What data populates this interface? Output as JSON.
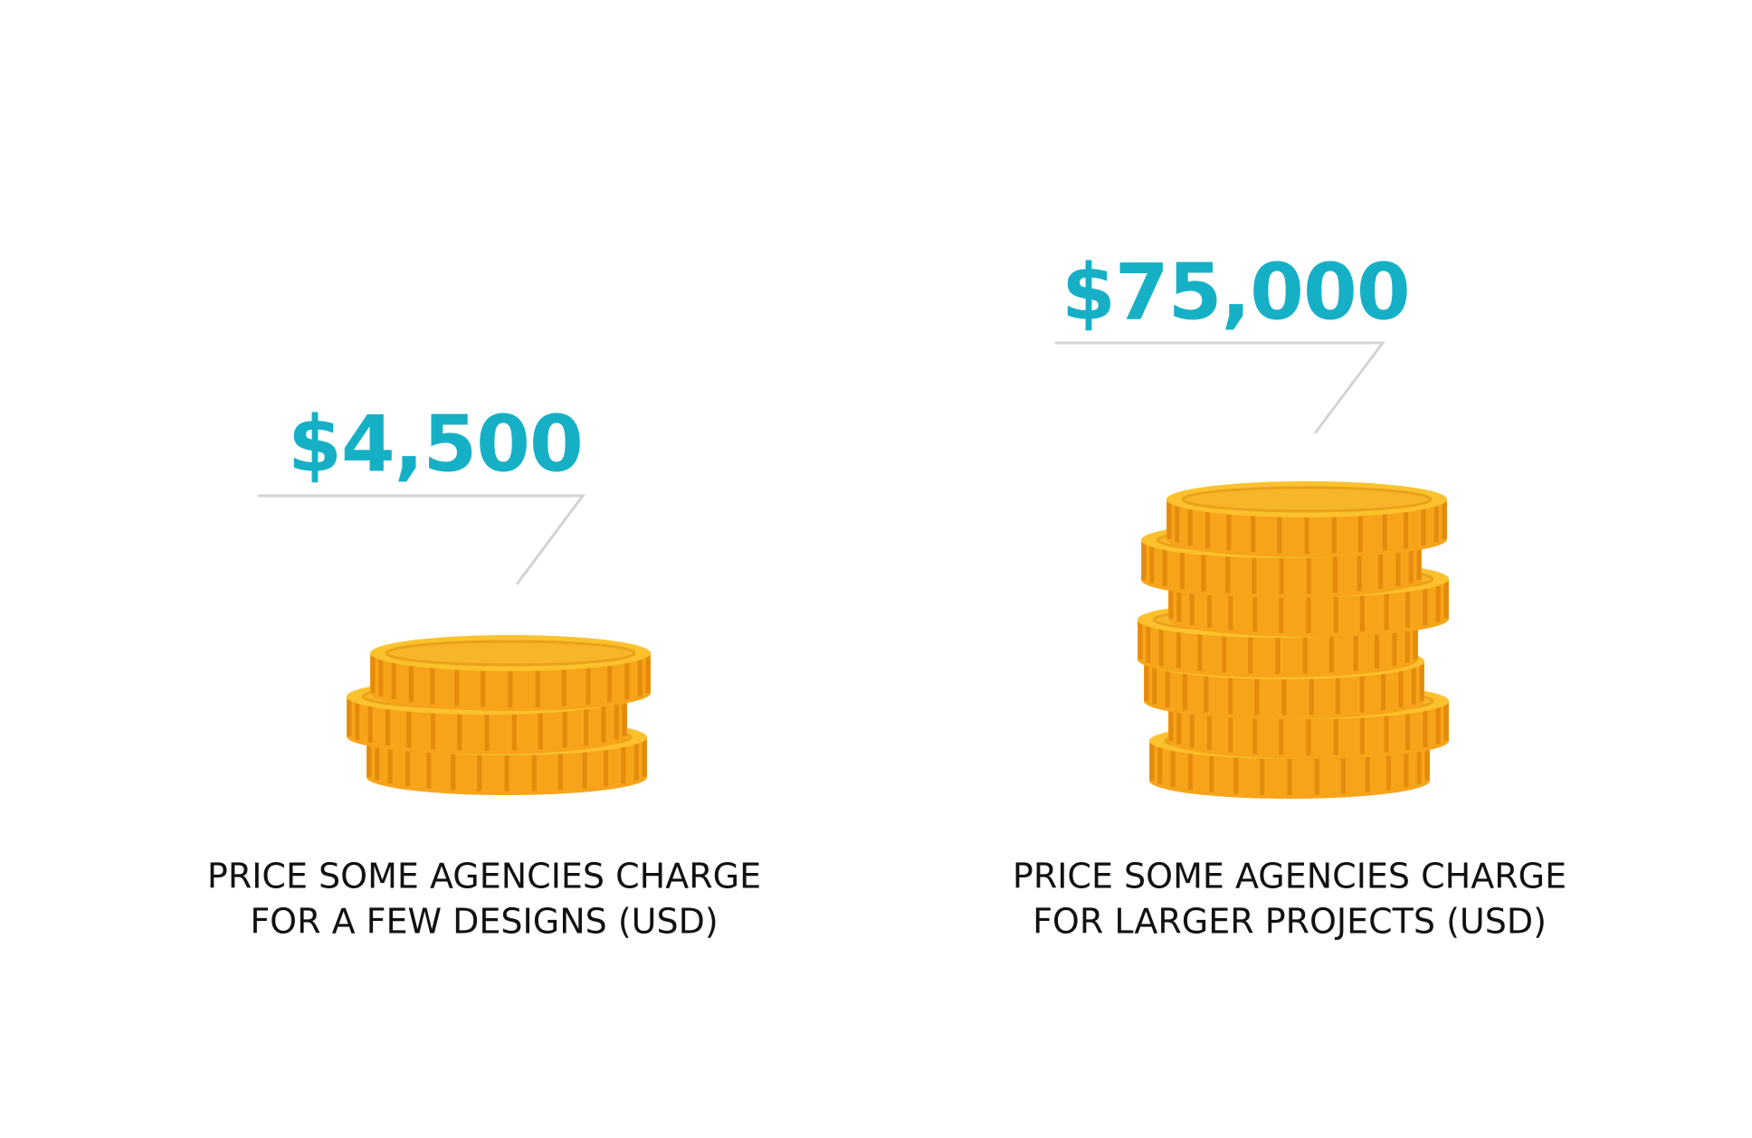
{
  "items": [
    {
      "price": "$4,500",
      "caption": [
        "PRICE SOME AGENCIES CHARGE",
        "FOR A FEW DESIGNS (USD)"
      ]
    },
    {
      "price": "$75,000",
      "caption": [
        "PRICE SOME AGENCIES CHARGE",
        "FOR LARGER PROJECTS (USD)"
      ]
    }
  ]
}
